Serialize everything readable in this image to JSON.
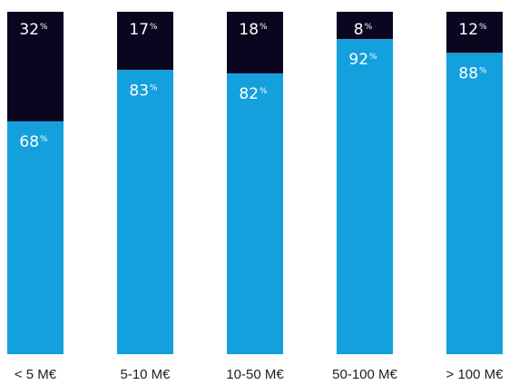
{
  "chart_data": {
    "type": "bar",
    "stacked": true,
    "title": "",
    "xlabel": "",
    "ylabel": "",
    "ylim": [
      0,
      100
    ],
    "grid": false,
    "legend": "none",
    "categories": [
      "< 5 M€",
      "5-10 M€",
      "10-50 M€",
      "50-100 M€",
      "> 100 M€"
    ],
    "value_suffix": "%",
    "series": [
      {
        "values": [
          68,
          83,
          82,
          92,
          88
        ],
        "color": "#14a0dc"
      },
      {
        "values": [
          32,
          17,
          18,
          8,
          12
        ],
        "color": "#0c0520"
      }
    ]
  }
}
